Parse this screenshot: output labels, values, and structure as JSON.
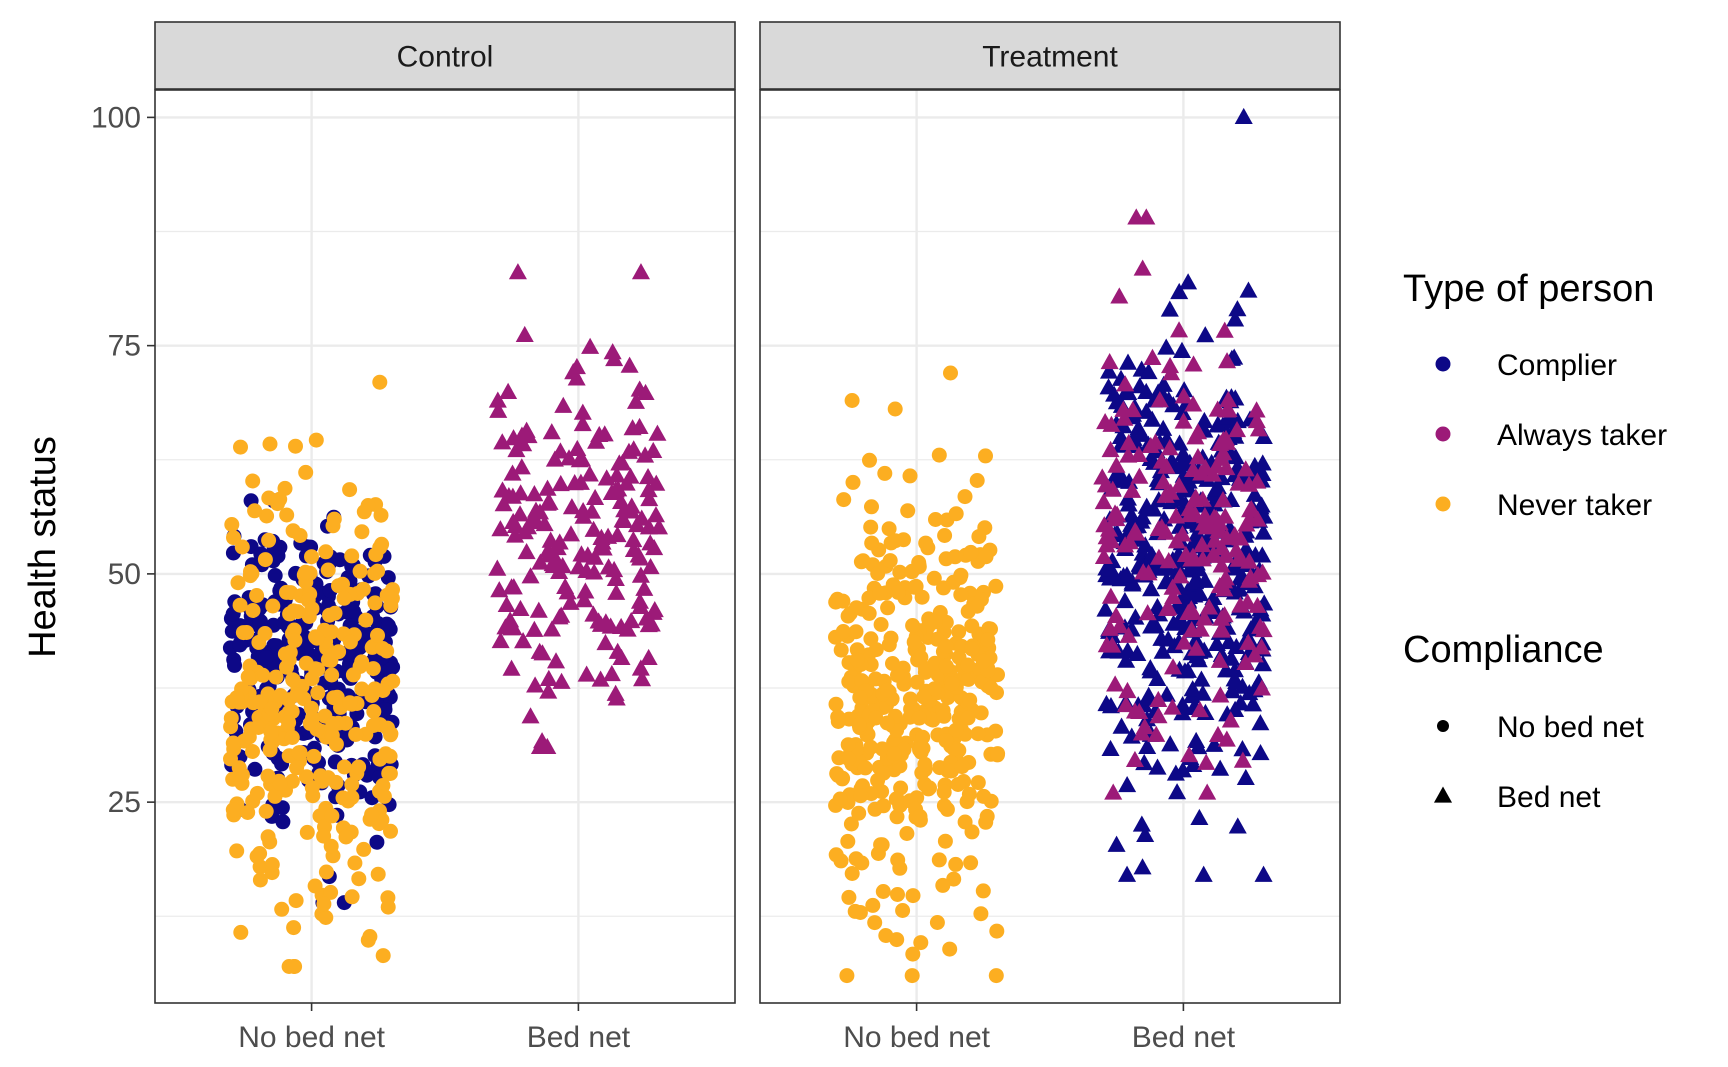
{
  "colors": {
    "complier": "#0d0887",
    "always_taker": "#9c1a78",
    "never_taker": "#fcae21",
    "strip_bg": "#d9d9d9",
    "grid": "#ebebeb"
  },
  "chart_data": {
    "type": "scatter",
    "ylabel": "Health status",
    "ylim": [
      3,
      103
    ],
    "y_ticks": [
      25,
      50,
      75,
      100
    ],
    "y_tick_labels": [
      "25",
      "50",
      "75",
      "100"
    ],
    "x_categories": [
      "No bed net",
      "Bed net"
    ],
    "jitter": true,
    "grid": true,
    "panels": [
      {
        "label": "Control",
        "groups": [
          {
            "x": "No bed net",
            "type": "Complier",
            "shape": "circle",
            "n": 300,
            "mean": 40,
            "sd": 9,
            "min": 14,
            "max": 58
          },
          {
            "x": "No bed net",
            "type": "Never taker",
            "shape": "circle",
            "n": 300,
            "mean": 36,
            "sd": 12,
            "min": 7,
            "max": 71
          },
          {
            "x": "Bed net",
            "type": "Always taker",
            "shape": "triangle",
            "n": 200,
            "mean": 55,
            "sd": 10,
            "min": 31,
            "max": 83
          }
        ]
      },
      {
        "label": "Treatment",
        "groups": [
          {
            "x": "No bed net",
            "type": "Never taker",
            "shape": "circle",
            "n": 400,
            "mean": 36,
            "sd": 11,
            "min": 6,
            "max": 72
          },
          {
            "x": "Bed net",
            "type": "Complier",
            "shape": "triangle",
            "n": 400,
            "mean": 52,
            "sd": 13,
            "min": 17,
            "max": 100
          },
          {
            "x": "Bed net",
            "type": "Always taker",
            "shape": "triangle",
            "n": 200,
            "mean": 55,
            "sd": 11,
            "min": 26,
            "max": 89
          }
        ]
      }
    ],
    "legend": {
      "position": "right",
      "color_title": "Type of person",
      "color_entries": [
        {
          "label": "Complier",
          "color": "#0d0887"
        },
        {
          "label": "Always taker",
          "color": "#9c1a78"
        },
        {
          "label": "Never taker",
          "color": "#fcae21"
        }
      ],
      "shape_title": "Compliance",
      "shape_entries": [
        {
          "label": "No bed net",
          "shape": "circle"
        },
        {
          "label": "Bed net",
          "shape": "triangle"
        }
      ]
    }
  }
}
